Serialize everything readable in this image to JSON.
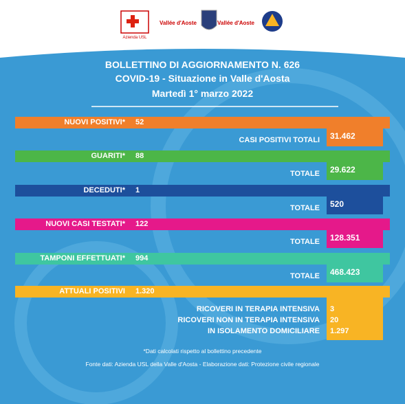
{
  "header": {
    "logo_texts": [
      "Azienda USL",
      "Vallée d'Aoste",
      "Vallée d'Aoste"
    ],
    "title": "BOLLETTINO DI AGGIORNAMENTO N. 626",
    "subtitle": "COVID-19 - Situazione in Valle d'Aosta",
    "date": "Martedì 1° marzo 2022"
  },
  "rows": [
    {
      "label": "NUOVI POSITIVI*",
      "value": "52",
      "total_label": "CASI POSITIVI TOTALI",
      "total": "31.462",
      "color": "#f07f2b"
    },
    {
      "label": "GUARITI*",
      "value": "88",
      "total_label": "TOTALE",
      "total": "29.622",
      "color": "#4cb648"
    },
    {
      "label": "DECEDUTI*",
      "value": "1",
      "total_label": "TOTALE",
      "total": "520",
      "color": "#1d4f9c"
    },
    {
      "label": "NUOVI CASI TESTATI*",
      "value": "122",
      "total_label": "TOTALE",
      "total": "128.351",
      "color": "#e5198a"
    },
    {
      "label": "TAMPONI EFFETTUATI*",
      "value": "994",
      "total_label": "TOTALE",
      "total": "468.423",
      "color": "#3fc6a0"
    }
  ],
  "current": {
    "label": "ATTUALI POSITIVI",
    "value": "1.320",
    "color": "#f8b424",
    "details": [
      {
        "label": "RICOVERI IN TERAPIA INTENSIVA",
        "value": "3"
      },
      {
        "label": "RICOVERI NON IN TERAPIA INTENSIVA",
        "value": "20"
      },
      {
        "label": "IN ISOLAMENTO DOMICILIARE",
        "value": "1.297"
      }
    ]
  },
  "footer": {
    "note": "*Dati calcolati rispetto al bollettino precedente",
    "source": "Fonte dati: Azienda USL della Valle d'Aosta - Elaborazione dati: Protezione civile regionale"
  }
}
